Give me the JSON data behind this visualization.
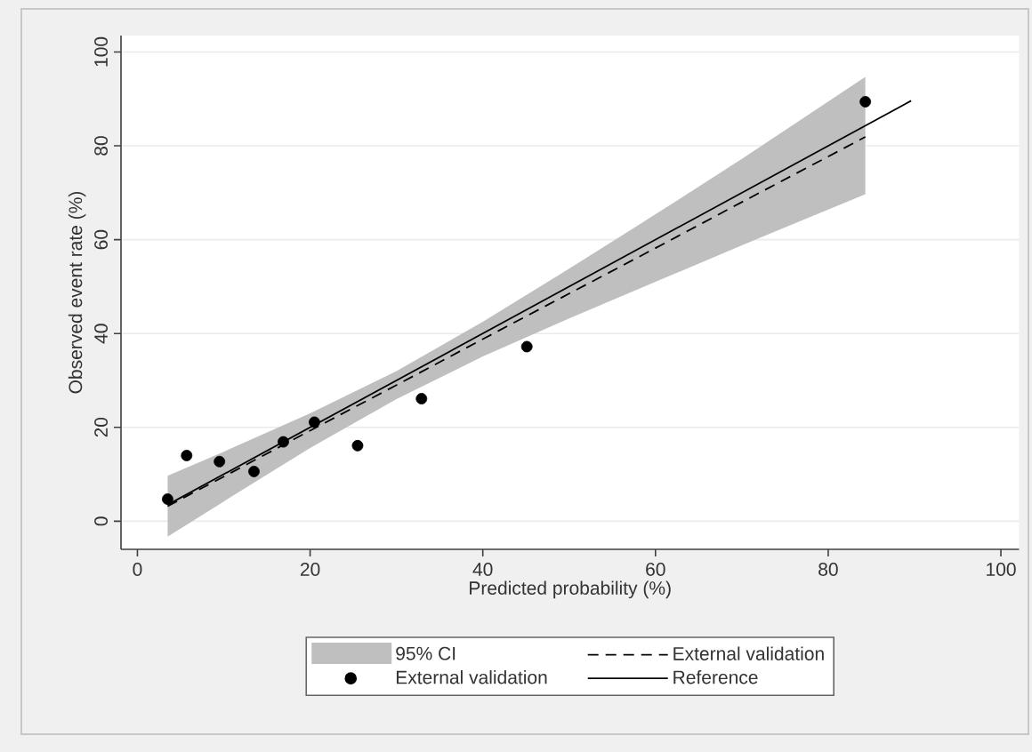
{
  "chart_data": {
    "type": "line",
    "xlabel": "Predicted probability (%)",
    "ylabel": "Observed event rate (%)",
    "xlim": [
      -1.9,
      102.1
    ],
    "ylim": [
      -6,
      103.5
    ],
    "xticks": [
      0,
      20,
      40,
      60,
      80,
      100
    ],
    "yticks": [
      0,
      20,
      40,
      60,
      80,
      100
    ],
    "grid": "y",
    "legend": "bottom",
    "annotations": [
      "95% CI"
    ],
    "series": [
      {
        "name": "External validation",
        "line_style": "dashed",
        "color": "#000000",
        "x": [
          3.5,
          10,
          20,
          30,
          40,
          50,
          60,
          70,
          84.3
        ],
        "values": [
          3.2,
          9.5,
          19.3,
          29.0,
          38.8,
          48.5,
          58.2,
          68.0,
          81.9
        ],
        "lower": [
          -3.3,
          4.2,
          15.6,
          26.0,
          35.1,
          43.2,
          51.0,
          58.8,
          69.7
        ],
        "upper": [
          9.7,
          14.8,
          23.0,
          32.0,
          42.5,
          53.8,
          65.4,
          77.2,
          94.7
        ]
      },
      {
        "name": "External validation",
        "type": "scatter",
        "marker": "circle",
        "color": "#000000",
        "x": [
          3.5,
          5.7,
          9.5,
          13.5,
          16.9,
          20.5,
          25.5,
          32.9,
          45.1,
          84.3
        ],
        "values": [
          4.7,
          14.0,
          12.7,
          10.6,
          16.9,
          21.1,
          16.1,
          26.1,
          37.2,
          89.4
        ]
      },
      {
        "name": "Reference",
        "line_style": "solid",
        "color": "#000000",
        "x": [
          3.5,
          89.6
        ],
        "values": [
          3.5,
          89.6
        ]
      }
    ]
  }
}
